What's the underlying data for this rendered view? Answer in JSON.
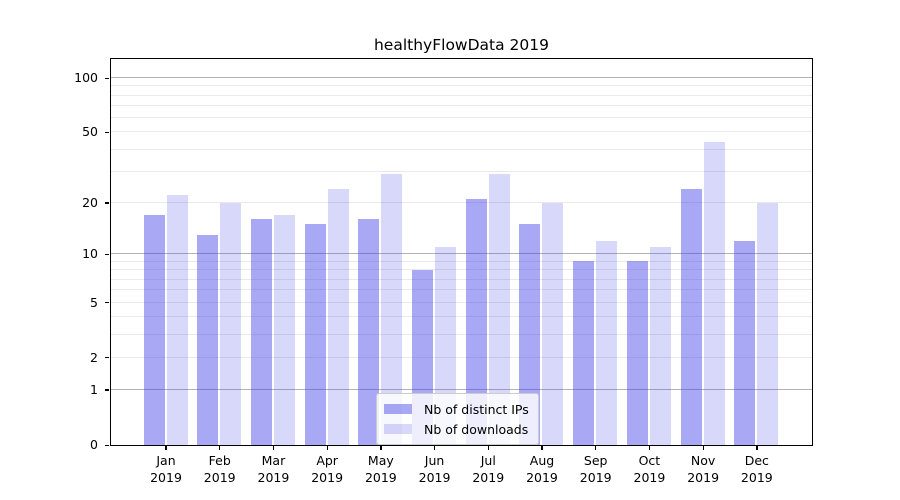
{
  "title": "healthyFlowData 2019",
  "colors": {
    "ips_fill": "rgba(62,62,231,0.45)",
    "downloads_fill": "rgba(62,62,231,0.2)",
    "grid_major": "#b3b3b3",
    "grid_minor": "#e9e9e9",
    "axis": "#000000",
    "legend_border": "#cccccc"
  },
  "legend": {
    "items": [
      {
        "label": "Nb of distinct IPs",
        "color_key": "ips_fill"
      },
      {
        "label": "Nb of downloads",
        "color_key": "downloads_fill"
      }
    ],
    "position": "lower center"
  },
  "x_axis": {
    "year_label": "2019",
    "months": [
      "Jan",
      "Feb",
      "Mar",
      "Apr",
      "May",
      "Jun",
      "Jul",
      "Aug",
      "Sep",
      "Oct",
      "Nov",
      "Dec"
    ]
  },
  "y_axis": {
    "scale": "symlog",
    "tick_values": [
      0,
      1,
      2,
      5,
      10,
      20,
      50,
      100
    ],
    "tick_labels": [
      "0",
      "1",
      "2",
      "5",
      "10",
      "20",
      "50",
      "100"
    ],
    "major_gridlines": [
      1,
      10,
      100
    ],
    "minor_gridlines": [
      2,
      3,
      4,
      5,
      6,
      7,
      8,
      9,
      20,
      30,
      40,
      50,
      60,
      70,
      80,
      90
    ],
    "ylim": [
      0,
      128
    ]
  },
  "chart_data": {
    "type": "bar",
    "title": "healthyFlowData 2019",
    "categories": [
      "Jan 2019",
      "Feb 2019",
      "Mar 2019",
      "Apr 2019",
      "May 2019",
      "Jun 2019",
      "Jul 2019",
      "Aug 2019",
      "Sep 2019",
      "Oct 2019",
      "Nov 2019",
      "Dec 2019"
    ],
    "series": [
      {
        "name": "Nb of distinct IPs",
        "values": [
          17,
          13,
          16,
          15,
          16,
          8,
          21,
          15,
          9,
          9,
          24,
          12
        ]
      },
      {
        "name": "Nb of downloads",
        "values": [
          22,
          20,
          17,
          24,
          29,
          11,
          29,
          20,
          12,
          11,
          44,
          20
        ]
      }
    ],
    "xlabel": "",
    "ylabel": "",
    "y_scale": "symlog",
    "y_ticks": [
      0,
      1,
      2,
      5,
      10,
      20,
      50,
      100
    ],
    "grid": true,
    "legend_position": "lower center"
  }
}
